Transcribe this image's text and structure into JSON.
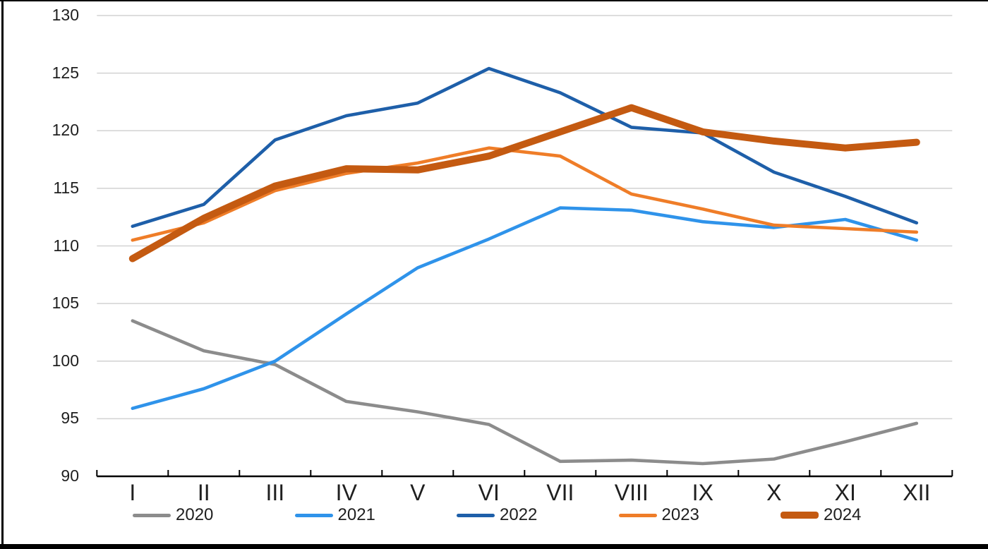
{
  "frame": {
    "border_color": "#000000",
    "background": "#ffffff"
  },
  "chart_data": {
    "type": "line",
    "title": "",
    "xlabel": "",
    "ylabel": "",
    "categories": [
      "I",
      "II",
      "III",
      "IV",
      "V",
      "VI",
      "VII",
      "VIII",
      "IX",
      "X",
      "XI",
      "XII"
    ],
    "y_ticks": [
      130,
      125,
      120,
      115,
      110,
      105,
      100,
      95,
      90
    ],
    "ylim": [
      90,
      130
    ],
    "grid": true,
    "gridline_color": "#d2d2d2",
    "axis_color": "#000000",
    "tick_label_color": "#1f1f1f",
    "legend_position": "bottom",
    "series": [
      {
        "name": "2020",
        "color": "#8C8C8C",
        "thick": false,
        "values": [
          103.5,
          100.9,
          99.7,
          96.5,
          95.6,
          94.5,
          91.3,
          91.4,
          91.1,
          91.5,
          93.0,
          94.6
        ]
      },
      {
        "name": "2021",
        "color": "#2F93EA",
        "thick": false,
        "values": [
          95.9,
          97.6,
          100.0,
          104.1,
          108.1,
          110.6,
          113.3,
          113.1,
          112.1,
          111.6,
          112.3,
          110.5
        ]
      },
      {
        "name": "2022",
        "color": "#1E5FA9",
        "thick": false,
        "values": [
          111.7,
          113.6,
          119.2,
          121.3,
          122.4,
          125.4,
          123.3,
          120.3,
          119.8,
          116.4,
          114.3,
          112.0
        ]
      },
      {
        "name": "2023",
        "color": "#EF7D28",
        "thick": false,
        "values": [
          110.5,
          112.0,
          114.8,
          116.3,
          117.2,
          118.5,
          117.8,
          114.5,
          113.2,
          111.8,
          111.5,
          111.2
        ]
      },
      {
        "name": "2024",
        "color": "#C45A11",
        "thick": true,
        "values": [
          108.9,
          112.4,
          115.2,
          116.7,
          116.6,
          117.8,
          119.9,
          122.0,
          119.9,
          119.1,
          118.5,
          119.0
        ]
      }
    ]
  }
}
